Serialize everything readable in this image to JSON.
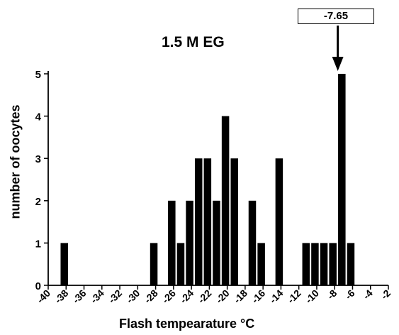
{
  "chart_data": {
    "type": "bar",
    "title": "1.5 M EG",
    "xlabel": "Flash tempearature °C",
    "ylabel": "number of oocytes",
    "xlim": [
      -40,
      -2
    ],
    "ylim": [
      0,
      5
    ],
    "xticks": [
      "-40",
      "-38",
      "-36",
      "-34",
      "-32",
      "-30",
      "-28",
      "-26",
      "-24",
      "-22",
      "-20",
      "-18",
      "-16",
      "-14",
      "-12",
      "-10",
      "-8",
      "-6",
      "-4",
      "-2"
    ],
    "yticks": [
      "0",
      "1",
      "2",
      "3",
      "4",
      "5"
    ],
    "bars": [
      {
        "x": -38.2,
        "value": 1
      },
      {
        "x": -28.2,
        "value": 1
      },
      {
        "x": -26.2,
        "value": 2
      },
      {
        "x": -25.2,
        "value": 1
      },
      {
        "x": -24.2,
        "value": 2
      },
      {
        "x": -23.2,
        "value": 3
      },
      {
        "x": -22.2,
        "value": 3
      },
      {
        "x": -21.2,
        "value": 2
      },
      {
        "x": -20.2,
        "value": 4
      },
      {
        "x": -19.2,
        "value": 3
      },
      {
        "x": -17.2,
        "value": 2
      },
      {
        "x": -16.2,
        "value": 1
      },
      {
        "x": -14.2,
        "value": 3
      },
      {
        "x": -11.2,
        "value": 1
      },
      {
        "x": -10.2,
        "value": 1
      },
      {
        "x": -9.2,
        "value": 1
      },
      {
        "x": -8.2,
        "value": 1
      },
      {
        "x": -7.2,
        "value": 5
      },
      {
        "x": -6.2,
        "value": 1
      }
    ],
    "annotation": {
      "label": "-7.65",
      "x": -7.65
    }
  }
}
